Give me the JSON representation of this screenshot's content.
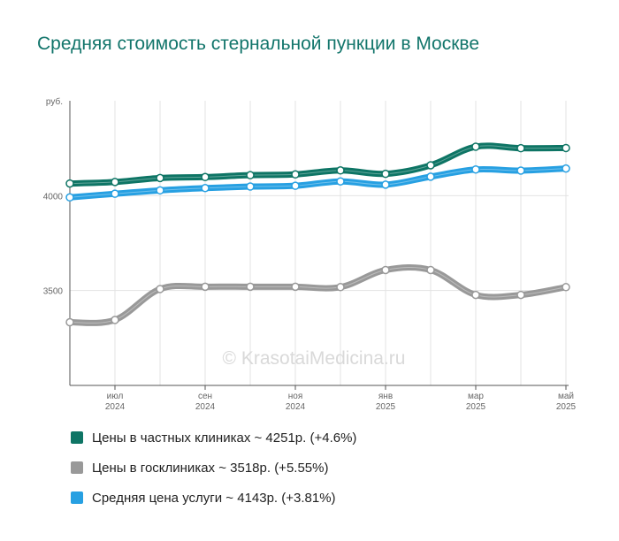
{
  "title": "Средняя стоимость стернальной пункции в Москве",
  "watermark": "© KrasotaiMedicina.ru",
  "legend": [
    {
      "label": "Цены в частных клиниках ~ 4251р. (+4.6%)",
      "color": "#0e7565"
    },
    {
      "label": "Цены в госклиниках ~ 3518р. (+5.55%)",
      "color": "#999999"
    },
    {
      "label": "Средняя цена услуги ~ 4143р. (+3.81%)",
      "color": "#27a0e2"
    }
  ],
  "chart_data": {
    "type": "line",
    "ylabel": "руб.",
    "ylim": [
      3000,
      4500
    ],
    "yticks": [
      3500,
      4000
    ],
    "grid": true,
    "x_ticks": [
      {
        "m": "июл",
        "y": "2024"
      },
      {
        "m": "сен",
        "y": "2024"
      },
      {
        "m": "ноя",
        "y": "2024"
      },
      {
        "m": "янв",
        "y": "2025"
      },
      {
        "m": "мар",
        "y": "2025"
      },
      {
        "m": "май",
        "y": "2025"
      }
    ],
    "x": [
      "2024-06",
      "2024-07",
      "2024-08",
      "2024-09",
      "2024-10",
      "2024-11",
      "2024-12",
      "2025-01",
      "2025-02",
      "2025-03",
      "2025-04",
      "2025-05"
    ],
    "series": [
      {
        "name": "Цены в частных клиниках",
        "color": "#0e7565",
        "values": [
          4064,
          4072,
          4093,
          4098,
          4108,
          4112,
          4133,
          4115,
          4160,
          4258,
          4250,
          4251
        ]
      },
      {
        "name": "Цены в госклиниках",
        "color": "#999999",
        "values": [
          3333,
          3345,
          3508,
          3520,
          3520,
          3520,
          3518,
          3608,
          3608,
          3477,
          3477,
          3518
        ]
      },
      {
        "name": "Средняя цена услуги",
        "color": "#27a0e2",
        "values": [
          3991,
          4010,
          4028,
          4040,
          4048,
          4052,
          4075,
          4058,
          4100,
          4138,
          4132,
          4143
        ]
      }
    ]
  }
}
